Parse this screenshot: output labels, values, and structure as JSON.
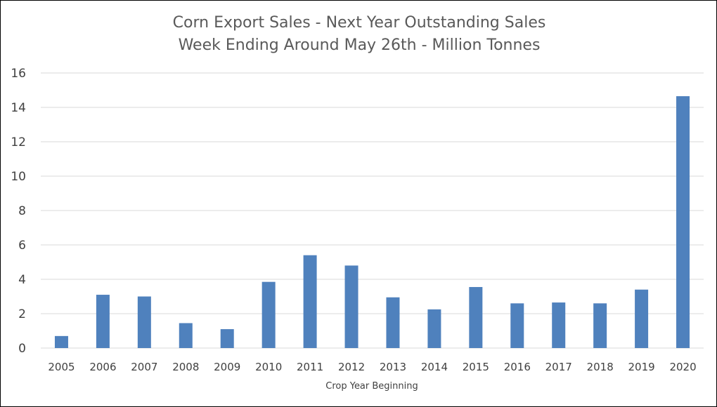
{
  "chart_data": {
    "type": "bar",
    "title": [
      "Corn Export Sales - Next Year Outstanding Sales",
      "Week Ending Around May 26th - Million Tonnes"
    ],
    "xlabel": "Crop Year Beginning",
    "ylabel": "",
    "categories": [
      "2005",
      "2006",
      "2007",
      "2008",
      "2009",
      "2010",
      "2011",
      "2012",
      "2013",
      "2014",
      "2015",
      "2016",
      "2017",
      "2018",
      "2019",
      "2020"
    ],
    "values": [
      0.7,
      3.1,
      3.0,
      1.45,
      1.1,
      3.85,
      5.4,
      4.8,
      2.95,
      2.25,
      3.55,
      2.6,
      2.65,
      2.6,
      3.4,
      14.65
    ],
    "ylim": [
      0,
      16
    ],
    "yticks": [
      "0",
      "2",
      "4",
      "6",
      "8",
      "10",
      "12",
      "14",
      "16"
    ],
    "grid": true,
    "legend": "none",
    "bar_color": "#4f81bd"
  }
}
